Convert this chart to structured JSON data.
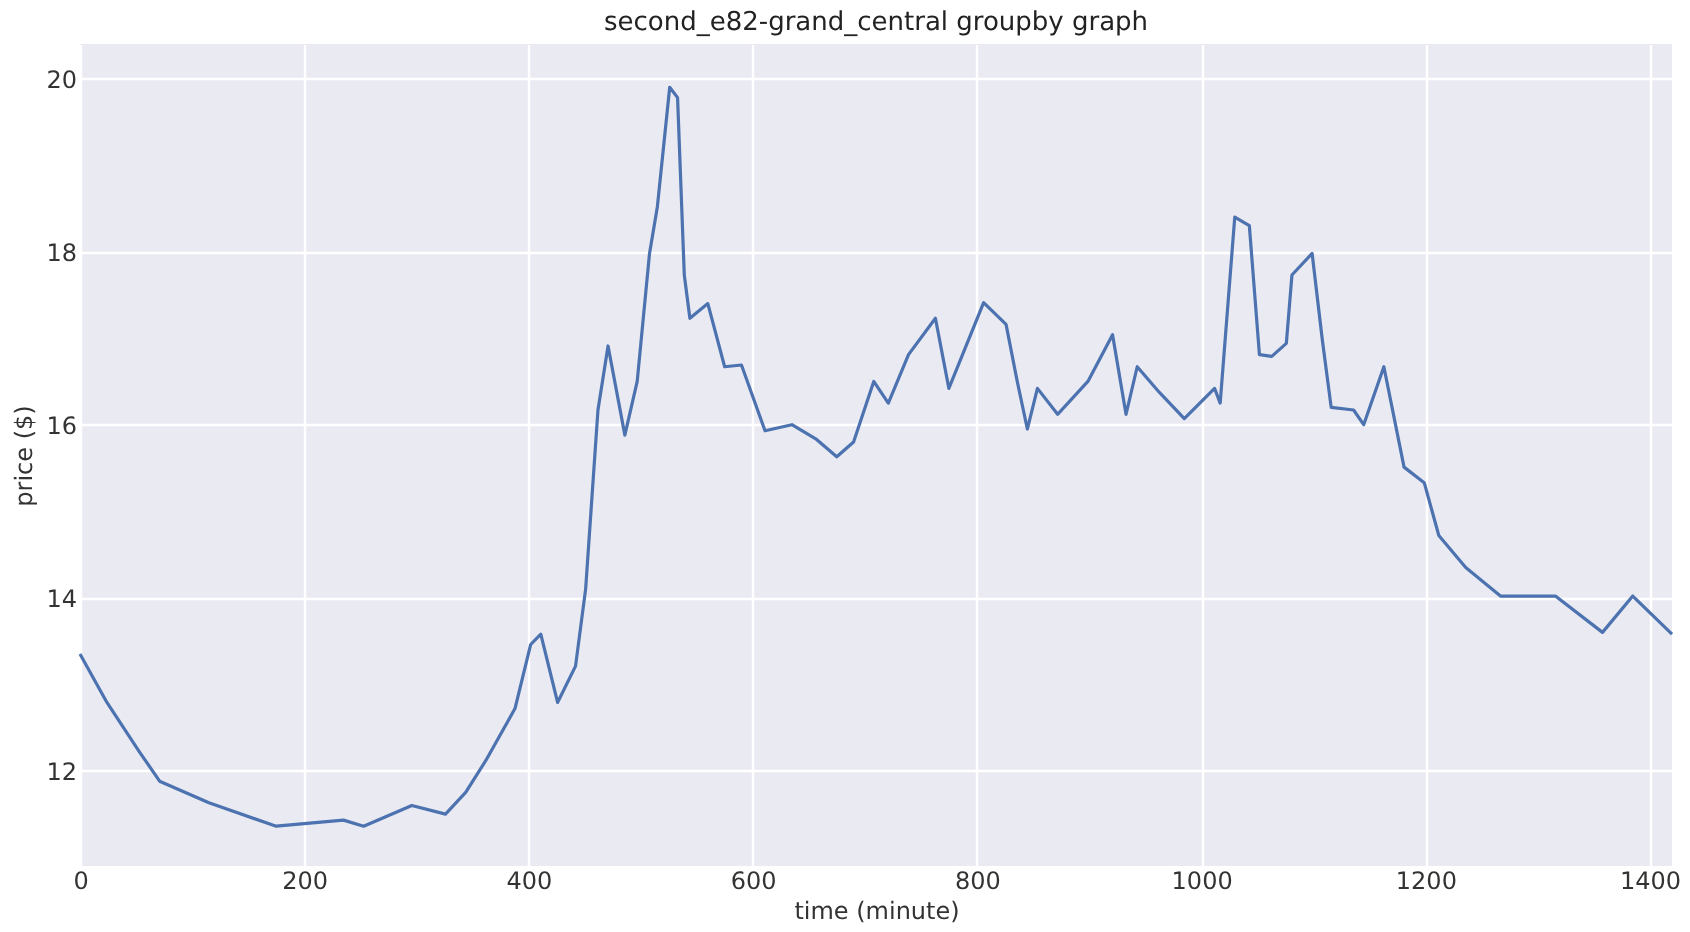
{
  "chart_data": {
    "type": "line",
    "title": "second_e82-grand_central groupby graph",
    "xlabel": "time (minute)",
    "ylabel": "price ($)",
    "x": [
      0,
      24,
      53,
      71,
      115,
      175,
      235,
      253,
      296,
      326,
      344,
      362,
      388,
      402,
      411,
      426,
      442,
      451,
      462,
      471,
      486,
      497,
      508,
      515,
      526,
      533,
      539,
      544,
      560,
      575,
      590,
      611,
      635,
      657,
      675,
      690,
      708,
      721,
      739,
      763,
      775,
      806,
      826,
      836,
      845,
      854,
      872,
      899,
      921,
      933,
      943,
      963,
      985,
      1012,
      1017,
      1030,
      1043,
      1052,
      1063,
      1076,
      1081,
      1099,
      1108,
      1116,
      1136,
      1145,
      1163,
      1181,
      1199,
      1212,
      1236,
      1267,
      1316,
      1358,
      1385,
      1420
    ],
    "series": [
      {
        "color": "#4c72b0",
        "values": [
          13.35,
          12.79,
          12.22,
          11.88,
          11.63,
          11.36,
          11.43,
          11.36,
          11.6,
          11.5,
          11.75,
          12.12,
          12.72,
          13.46,
          13.58,
          12.79,
          13.21,
          14.1,
          16.17,
          16.91,
          15.88,
          16.5,
          17.98,
          18.52,
          19.9,
          19.78,
          17.73,
          17.23,
          17.4,
          16.67,
          16.69,
          15.93,
          16.0,
          15.83,
          15.63,
          15.8,
          16.5,
          16.25,
          16.81,
          17.23,
          16.42,
          17.41,
          17.16,
          16.5,
          15.95,
          16.42,
          16.12,
          16.5,
          17.04,
          16.12,
          16.67,
          16.37,
          16.07,
          16.42,
          16.25,
          18.4,
          18.3,
          16.81,
          16.79,
          16.94,
          17.73,
          17.98,
          16.99,
          16.2,
          16.17,
          16.0,
          16.67,
          15.51,
          15.33,
          14.72,
          14.35,
          14.02,
          14.02,
          13.6,
          14.02,
          13.58
        ]
      }
    ],
    "xlim": [
      0,
      1420
    ],
    "xticks": [
      0,
      200,
      400,
      600,
      800,
      1000,
      1200,
      1400
    ],
    "ylim": [
      10.9,
      20.4
    ],
    "yticks": [
      12,
      14,
      16,
      18,
      20
    ],
    "grid": true,
    "legend": false
  }
}
